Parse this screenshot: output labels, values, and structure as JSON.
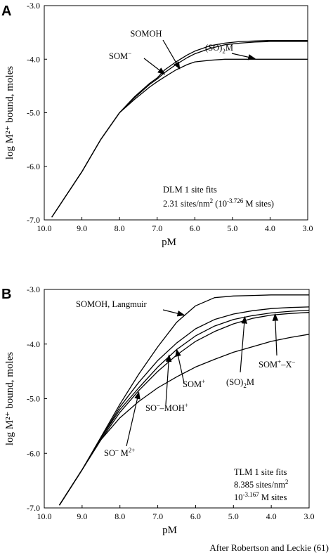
{
  "credit": "After Robertson and Leckie (61)",
  "chart_data": [
    {
      "type": "line",
      "panel_label": "A",
      "xlabel": "pM",
      "ylabel": "log M²⁺ bound, moles",
      "xlim": [
        10.0,
        3.0
      ],
      "ylim": [
        -7.0,
        -3.0
      ],
      "x_reversed": true,
      "xticks": [
        "10.0",
        "9.0",
        "8.0",
        "7.0",
        "6.0",
        "5.0",
        "4.0",
        "3.0"
      ],
      "yticks": [
        "-7.0",
        "-6.0",
        "-5.0",
        "-4.0",
        "-3.0"
      ],
      "grid": false,
      "legend": "none",
      "series": [
        {
          "x": [
            9.8,
            9.0,
            8.5,
            8.0,
            7.6,
            7.2,
            7.0,
            6.8,
            6.5,
            6.2,
            6.0,
            5.6,
            5.2,
            4.8,
            4.4,
            4.0,
            3.5,
            3.0
          ],
          "y": [
            -6.95,
            -6.1,
            -5.5,
            -5.0,
            -4.7,
            -4.45,
            -4.35,
            -4.2,
            -4.05,
            -3.92,
            -3.85,
            -3.75,
            -3.7,
            -3.67,
            -3.66,
            -3.65,
            -3.65,
            -3.65
          ]
        },
        {
          "x": [
            9.8,
            9.0,
            8.5,
            8.0,
            7.6,
            7.2,
            7.0,
            6.8,
            6.5,
            6.2,
            6.0,
            5.6,
            5.2,
            4.8,
            4.4,
            4.0,
            3.5,
            3.0
          ],
          "y": [
            -6.95,
            -6.1,
            -5.5,
            -5.0,
            -4.72,
            -4.47,
            -4.37,
            -4.25,
            -4.1,
            -3.97,
            -3.9,
            -3.8,
            -3.73,
            -3.7,
            -3.68,
            -3.67,
            -3.67,
            -3.67
          ]
        },
        {
          "x": [
            9.8,
            9.0,
            8.5,
            8.0,
            7.6,
            7.2,
            7.0,
            6.8,
            6.5,
            6.2,
            6.0,
            5.6,
            5.2,
            4.8,
            4.4,
            4.0,
            3.5,
            3.0
          ],
          "y": [
            -6.95,
            -6.1,
            -5.5,
            -5.0,
            -4.75,
            -4.52,
            -4.42,
            -4.33,
            -4.2,
            -4.1,
            -4.05,
            -4.02,
            -4.0,
            -4.0,
            -4.0,
            -4.0,
            -4.0,
            -4.0
          ]
        }
      ],
      "annotations": [
        {
          "text": "SOMOH",
          "arrow_to": [
            6.4,
            -4.18
          ]
        },
        {
          "text": "(SO)",
          "sub": "2",
          "tail": "M",
          "arrow_to": [
            4.4,
            -3.99
          ]
        },
        {
          "text": "SOM",
          "sup": "−",
          "arrow_to": [
            6.8,
            -4.28
          ]
        }
      ],
      "note_lines": [
        {
          "text": "DLM 1 site fits"
        },
        {
          "text": "2.31 sites/nm",
          "sup": "2",
          "tail": " (10",
          "sup2": "-3.726",
          "tail2": " M sites)"
        }
      ]
    },
    {
      "type": "line",
      "panel_label": "B",
      "xlabel": "pM",
      "ylabel": "log M²⁺ bound, moles",
      "xlim": [
        10.0,
        3.0
      ],
      "ylim": [
        -7.0,
        -3.0
      ],
      "x_reversed": true,
      "xticks": [
        "10.0",
        "9.0",
        "8.0",
        "7.0",
        "6.0",
        "5.0",
        "4.0",
        "3.0"
      ],
      "yticks": [
        "-7.0",
        "-6.0",
        "-5.0",
        "-4.0",
        "-3.0"
      ],
      "grid": false,
      "legend": "none",
      "series": [
        {
          "x": [
            9.6,
            9.0,
            8.5,
            8.0,
            7.5,
            7.0,
            6.5,
            6.0,
            5.5,
            5.0,
            4.5,
            4.0,
            3.5,
            3.0
          ],
          "y": [
            -6.95,
            -6.3,
            -5.7,
            -5.1,
            -4.55,
            -4.05,
            -3.6,
            -3.3,
            -3.15,
            -3.12,
            -3.11,
            -3.1,
            -3.1,
            -3.1
          ]
        },
        {
          "x": [
            9.6,
            9.0,
            8.5,
            8.0,
            7.5,
            7.0,
            6.5,
            6.0,
            5.5,
            5.0,
            4.5,
            4.0,
            3.5,
            3.0
          ],
          "y": [
            -6.95,
            -6.3,
            -5.72,
            -5.15,
            -4.7,
            -4.3,
            -3.98,
            -3.72,
            -3.55,
            -3.45,
            -3.39,
            -3.35,
            -3.33,
            -3.32
          ]
        },
        {
          "x": [
            9.6,
            9.0,
            8.5,
            8.0,
            7.5,
            7.0,
            6.5,
            6.0,
            5.5,
            5.0,
            4.5,
            4.0,
            3.5,
            3.0
          ],
          "y": [
            -6.95,
            -6.3,
            -5.72,
            -5.2,
            -4.8,
            -4.42,
            -4.1,
            -3.85,
            -3.67,
            -3.55,
            -3.48,
            -3.43,
            -3.4,
            -3.38
          ]
        },
        {
          "x": [
            9.6,
            9.0,
            8.5,
            8.0,
            7.5,
            7.0,
            6.5,
            6.0,
            5.5,
            5.0,
            4.5,
            4.0,
            3.5,
            3.0
          ],
          "y": [
            -6.95,
            -6.3,
            -5.75,
            -5.25,
            -4.85,
            -4.5,
            -4.2,
            -3.95,
            -3.77,
            -3.63,
            -3.53,
            -3.47,
            -3.44,
            -3.42
          ]
        },
        {
          "x": [
            9.6,
            9.0,
            8.5,
            8.0,
            7.5,
            7.0,
            6.5,
            6.0,
            5.5,
            5.0,
            4.5,
            4.0,
            3.5,
            3.0
          ],
          "y": [
            -6.95,
            -6.3,
            -5.75,
            -5.35,
            -5.05,
            -4.8,
            -4.6,
            -4.42,
            -4.28,
            -4.15,
            -4.05,
            -3.95,
            -3.88,
            -3.82
          ]
        }
      ],
      "annotations": [
        {
          "text": "SOMOH, Langmuir",
          "arrow_to": [
            6.3,
            -3.47
          ]
        },
        {
          "text": "SOM",
          "sup": "+",
          "arrow_to": [
            6.5,
            -4.1
          ]
        },
        {
          "text": "(SO)",
          "sub": "2",
          "tail": "M",
          "arrow_to": [
            4.7,
            -3.5
          ]
        },
        {
          "text": "SOM",
          "sup": "+",
          "tail": "–X",
          "sup2": "–",
          "arrow_to": [
            3.9,
            -3.45
          ]
        },
        {
          "text": "SO",
          "sup": "–",
          "tail": "–MOH",
          "sup2": "+",
          "arrow_to": [
            6.7,
            -4.2
          ]
        },
        {
          "text": "SO",
          "sup": "–",
          "tail": " M",
          "sup2": "2+",
          "arrow_to": [
            7.5,
            -4.88
          ]
        }
      ],
      "note_lines": [
        {
          "text": "TLM 1 site fits"
        },
        {
          "text": "8.385 sites/nm",
          "sup": "2"
        },
        {
          "text": "10",
          "sup": "-3.167",
          "tail": " M sites"
        }
      ]
    }
  ]
}
